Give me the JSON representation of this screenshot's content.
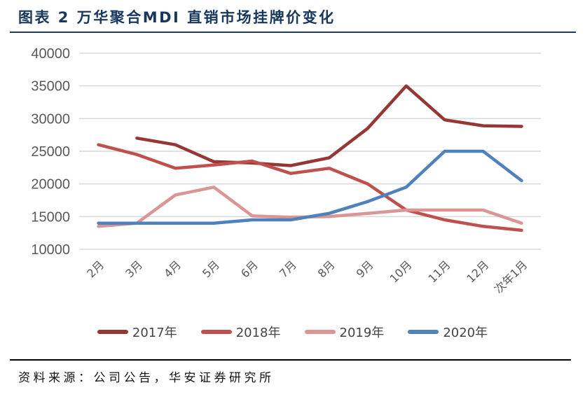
{
  "header": {
    "title": "图表 2 万华聚合MDI 直销市场挂牌价变化"
  },
  "chart_data": {
    "type": "line",
    "title": "",
    "xlabel": "",
    "ylabel": "",
    "categories": [
      "2月",
      "3月",
      "4月",
      "5月",
      "6月",
      "7月",
      "8月",
      "9月",
      "10月",
      "11月",
      "12月",
      "次年1月"
    ],
    "series": [
      {
        "name": "2017年",
        "color": "#953735",
        "values": [
          null,
          27000,
          26000,
          23400,
          23200,
          22800,
          24000,
          28500,
          35000,
          29800,
          28900,
          28800
        ]
      },
      {
        "name": "2018年",
        "color": "#C0504D",
        "values": [
          26000,
          24500,
          22400,
          22900,
          23500,
          21600,
          22400,
          20000,
          16000,
          14500,
          13500,
          12900
        ]
      },
      {
        "name": "2019年",
        "color": "#D99694",
        "values": [
          13500,
          14000,
          18300,
          19500,
          15100,
          14900,
          15000,
          15500,
          16000,
          16000,
          16000,
          14000
        ]
      },
      {
        "name": "2020年",
        "color": "#4F81BD",
        "values": [
          14000,
          14000,
          14000,
          14000,
          14500,
          14500,
          15500,
          17300,
          19500,
          25000,
          25000,
          20500
        ]
      }
    ],
    "ylim": [
      10000,
      40000
    ],
    "yticks": [
      40000,
      35000,
      30000,
      25000,
      20000,
      15000,
      10000
    ],
    "grid": "horizontal-only",
    "gridline_color": "#D9D9D9",
    "axis_label_color": "#595959",
    "legend_position": "bottom",
    "x_label_rotation_deg": -45
  },
  "footer": {
    "source": "资料来源：公司公告，华安证券研究所"
  }
}
